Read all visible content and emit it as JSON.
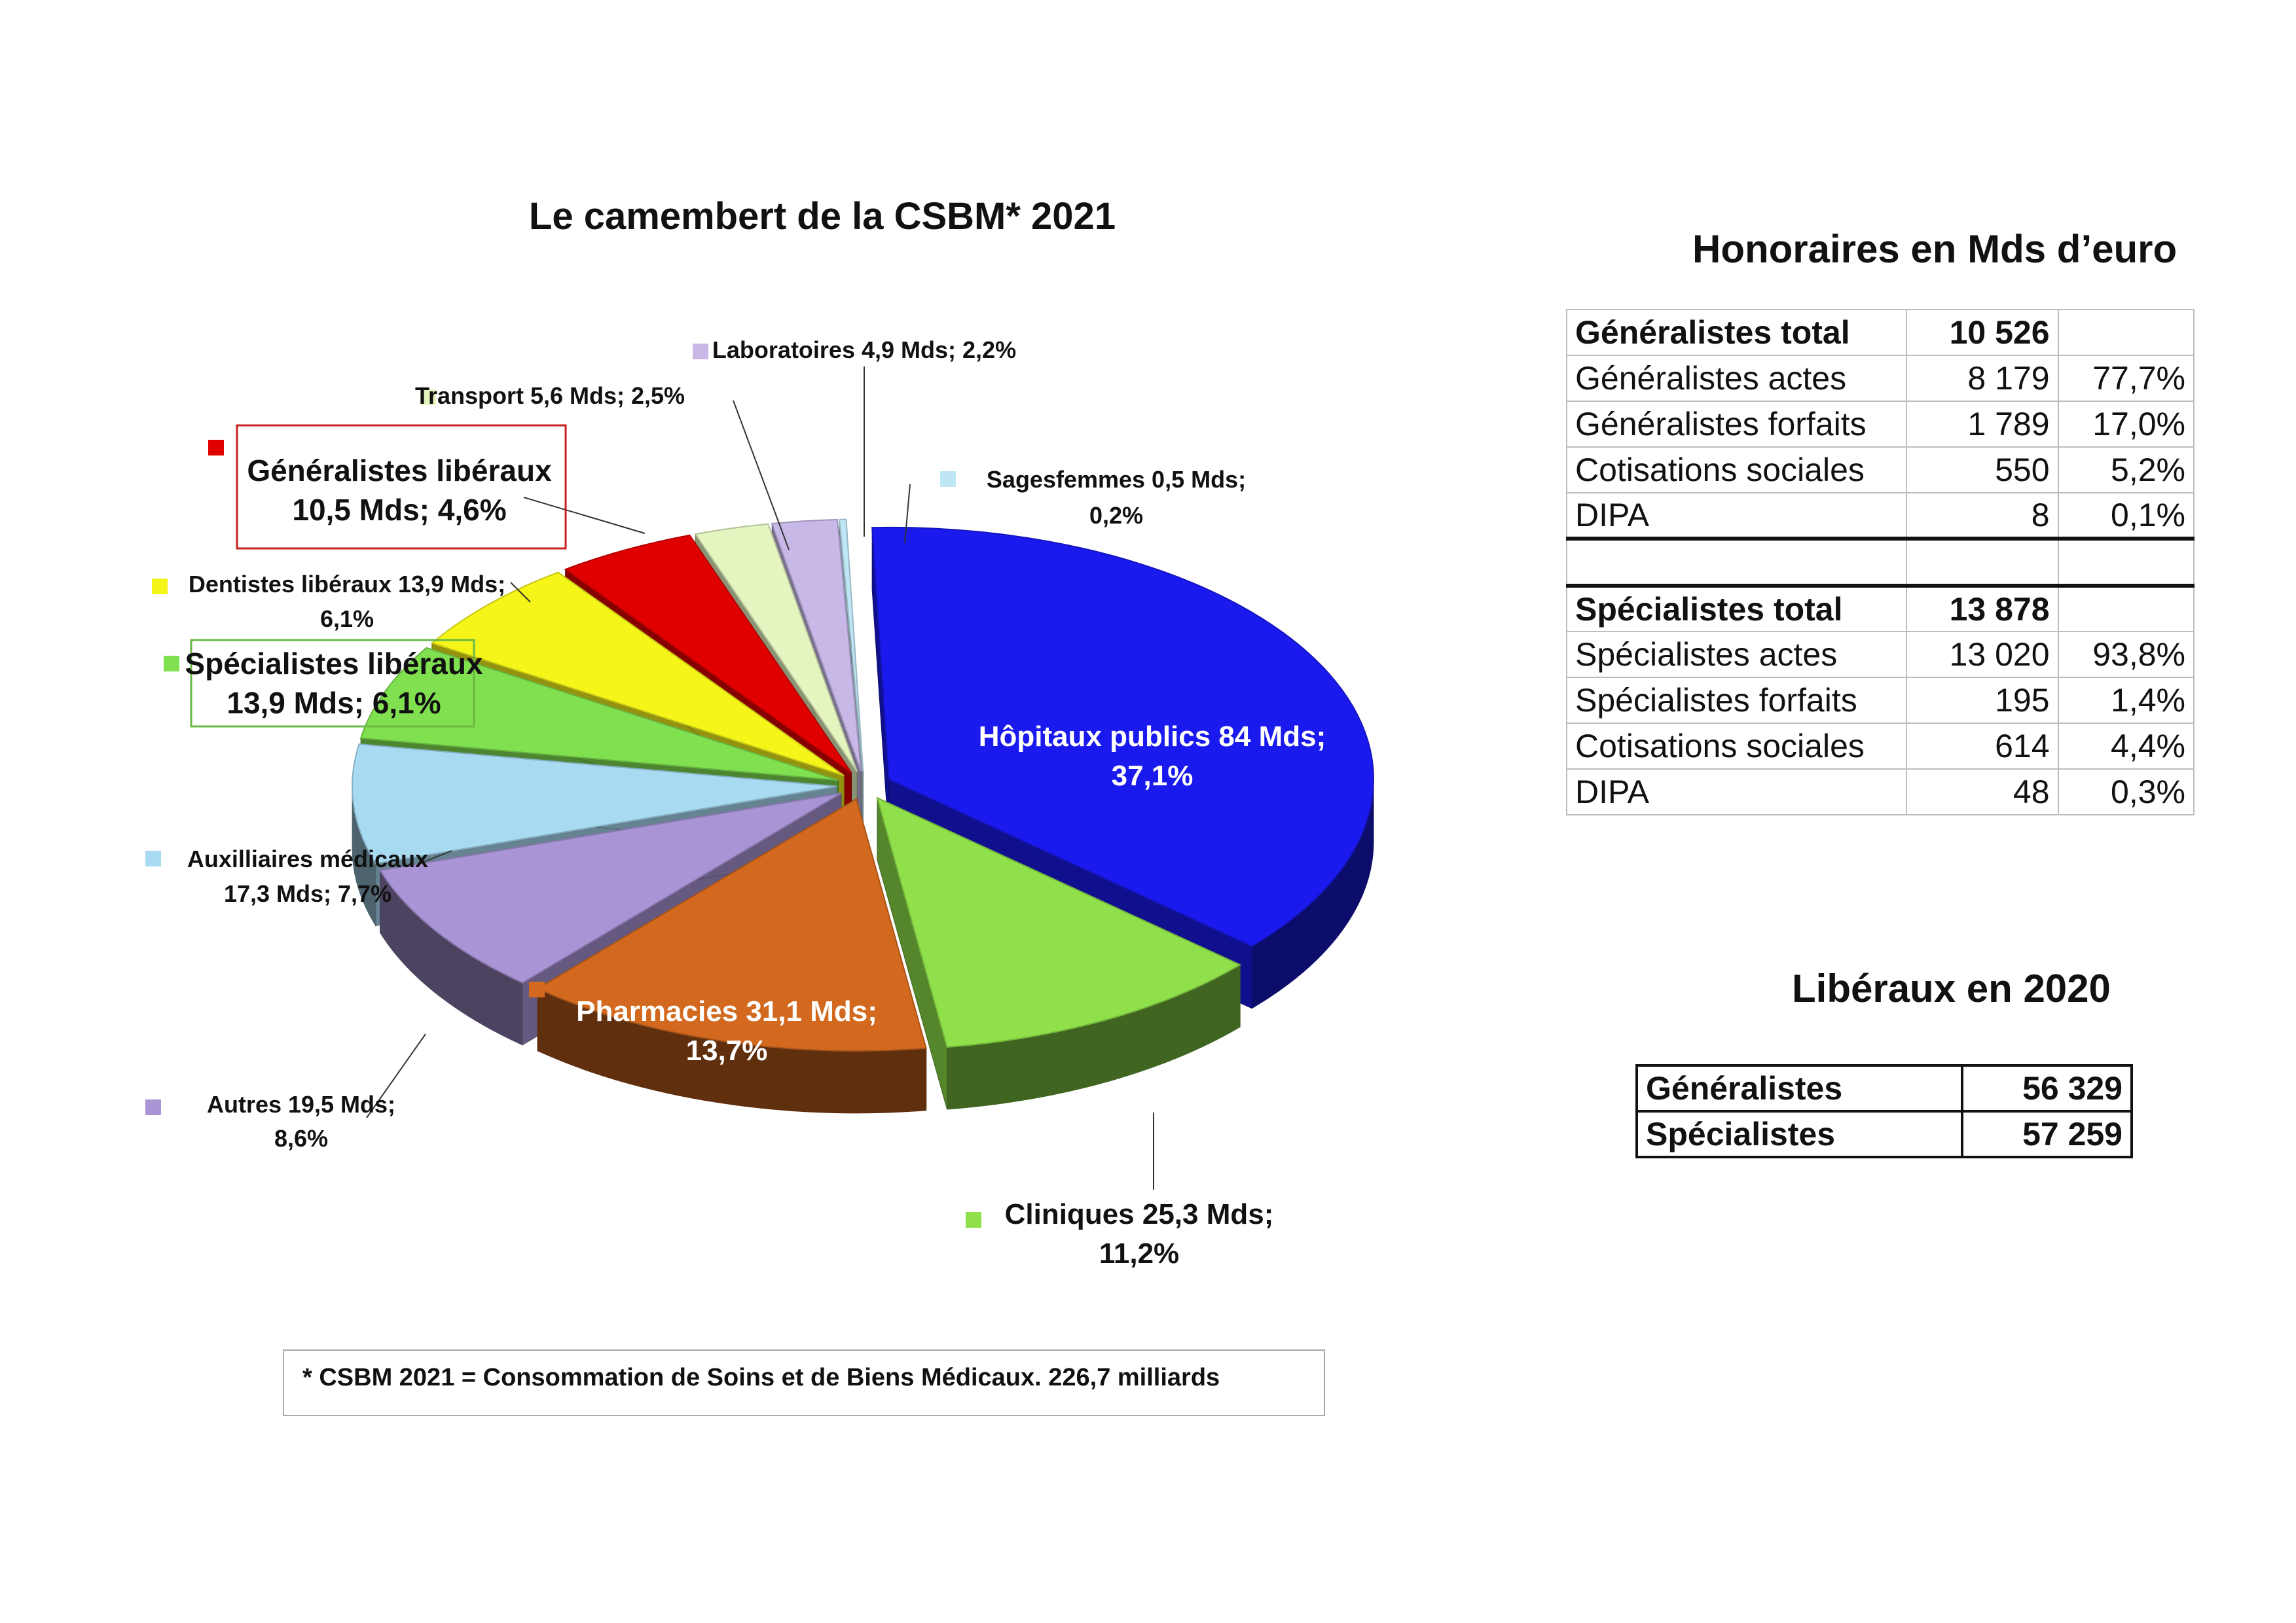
{
  "chart_data": {
    "type": "pie",
    "title": "Le camembert de la CSBM* 2021",
    "slices": [
      {
        "name": "Hôpitaux publics",
        "label": "Hôpitaux publics  84 Mds;",
        "pct_label": "37,1%",
        "value": 84,
        "percent": 37.1,
        "color": "#1a1aee"
      },
      {
        "name": "Cliniques",
        "label": "Cliniques 25,3 Mds;",
        "pct_label": "11,2%",
        "value": 25.3,
        "percent": 11.2,
        "color": "#8fe04a"
      },
      {
        "name": "Pharmacies",
        "label": "Pharmacies  31,1 Mds;",
        "pct_label": "13,7%",
        "value": 31.1,
        "percent": 13.7,
        "color": "#d2691e"
      },
      {
        "name": "Autres",
        "label": "Autres  19,5 Mds;",
        "pct_label": "8,6%",
        "value": 19.5,
        "percent": 8.6,
        "color": "#a994d6"
      },
      {
        "name": "Auxilliaires médicaux",
        "label": "Auxilliaires médicaux",
        "pct_label": "17,3 Mds; 7,7%",
        "value": 17.3,
        "percent": 7.7,
        "color": "#a8dbf2"
      },
      {
        "name": "Spécialistes libéraux",
        "label": "Spécialistes libéraux",
        "pct_label": "13,9 Mds; 6,1%",
        "value": 13.9,
        "percent": 6.1,
        "color": "#80e050"
      },
      {
        "name": "Dentistes libéraux",
        "label": "Dentistes libéraux  13,9 Mds;",
        "pct_label": "6,1%",
        "value": 13.9,
        "percent": 6.1,
        "color": "#f5f51a"
      },
      {
        "name": "Généralistes libéraux",
        "label": "Généralistes libéraux",
        "pct_label": "10,5 Mds; 4,6%",
        "value": 10.5,
        "percent": 4.6,
        "color": "#e00000"
      },
      {
        "name": "Transport",
        "label": "Transport  5,6 Mds; 2,5%",
        "pct_label": "",
        "value": 5.6,
        "percent": 2.5,
        "color": "#e4f5c0"
      },
      {
        "name": "Laboratoires",
        "label": "Laboratoires  4,9 Mds; 2,2%",
        "pct_label": "",
        "value": 4.9,
        "percent": 2.2,
        "color": "#c7b8e8"
      },
      {
        "name": "Sagesfemmes",
        "label": "Sagesfemmes  0,5  Mds;",
        "pct_label": "0,2%",
        "value": 0.5,
        "percent": 0.2,
        "color": "#bfe6f5"
      }
    ],
    "footnote": "* CSBM 2021 = Consommation de Soins et de Biens Médicaux. 226,7 milliards"
  },
  "honoraires": {
    "title": "Honoraires en Mds d’euro",
    "generalistes": [
      {
        "label": "Généralistes total",
        "value": "10 526",
        "pct": "",
        "bold": true
      },
      {
        "label": "Généralistes actes",
        "value": "8 179",
        "pct": "77,7%"
      },
      {
        "label": "Généralistes forfaits",
        "value": "1 789",
        "pct": "17,0%"
      },
      {
        "label": "Cotisations sociales",
        "value": "550",
        "pct": "5,2%"
      },
      {
        "label": "DIPA",
        "value": "8",
        "pct": "0,1%"
      }
    ],
    "specialistes": [
      {
        "label": "Spécialistes total",
        "value": "13 878",
        "pct": "",
        "bold": true
      },
      {
        "label": "Spécialistes actes",
        "value": "13 020",
        "pct": "93,8%"
      },
      {
        "label": "Spécialistes forfaits",
        "value": "195",
        "pct": "1,4%"
      },
      {
        "label": "Cotisations sociales",
        "value": "614",
        "pct": "4,4%"
      },
      {
        "label": "DIPA",
        "value": "48",
        "pct": "0,3%"
      }
    ]
  },
  "liberaux": {
    "title": "Libéraux en 2020",
    "rows": [
      {
        "label": "Généralistes",
        "value": "56 329"
      },
      {
        "label": "Spécialistes",
        "value": "57 259"
      }
    ]
  }
}
